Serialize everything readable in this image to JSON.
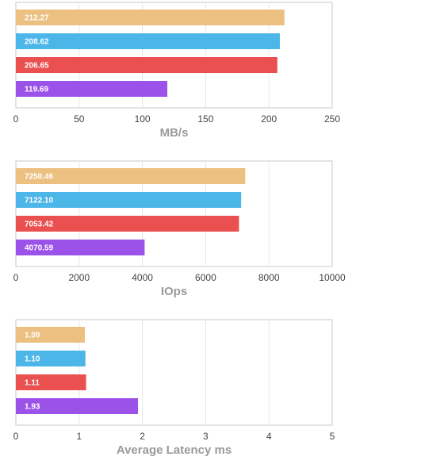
{
  "colors": [
    "#ecc080",
    "#4db6e8",
    "#ea5050",
    "#9b52e8"
  ],
  "chart_data": [
    {
      "type": "bar",
      "orientation": "horizontal",
      "xlabel": "MB/s",
      "xlim": [
        0,
        250
      ],
      "ticks": [
        0,
        50,
        100,
        150,
        200,
        250
      ],
      "values": [
        212.27,
        208.62,
        206.65,
        119.69
      ],
      "value_labels": [
        "212.27",
        "208.62",
        "206.65",
        "119.69"
      ],
      "grid": true
    },
    {
      "type": "bar",
      "orientation": "horizontal",
      "xlabel": "IOps",
      "xlim": [
        0,
        10000
      ],
      "ticks": [
        0,
        2000,
        4000,
        6000,
        8000,
        10000
      ],
      "values": [
        7250.46,
        7122.1,
        7053.42,
        4070.59
      ],
      "value_labels": [
        "7250.46",
        "7122.10",
        "7053.42",
        "4070.59"
      ],
      "grid": true
    },
    {
      "type": "bar",
      "orientation": "horizontal",
      "xlabel": "Average Latency ms",
      "xlim": [
        0,
        5
      ],
      "ticks": [
        0,
        1,
        2,
        3,
        4,
        5
      ],
      "values": [
        1.09,
        1.1,
        1.11,
        1.93
      ],
      "value_labels": [
        "1.09",
        "1.10",
        "1.11",
        "1.93"
      ],
      "grid": true
    }
  ]
}
